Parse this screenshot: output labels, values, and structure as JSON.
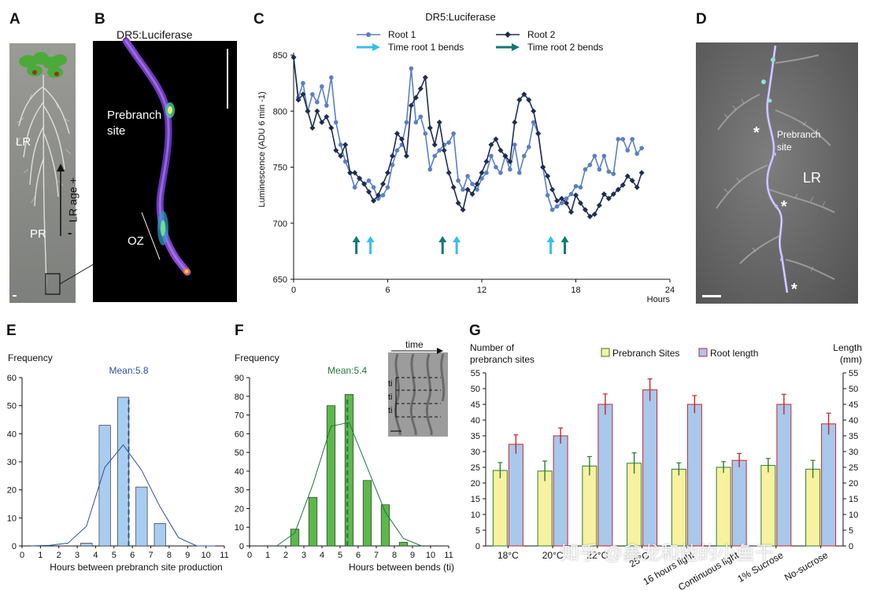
{
  "panels": {
    "A": {
      "letter": "A",
      "labels": {
        "lr": "LR",
        "pr": "PR",
        "age": "LR age",
        "plus": "+",
        "minus": "-",
        "scale": "-"
      }
    },
    "B": {
      "letter": "B",
      "title": "DR5:Luciferase",
      "labels": {
        "prebranch": "Prebranch",
        "site": "site",
        "oz": "OZ"
      }
    },
    "C": {
      "letter": "C"
    },
    "D": {
      "letter": "D",
      "labels": {
        "prebranch": "Prebranch",
        "site": "site",
        "lr": "LR",
        "star": "*"
      }
    },
    "E": {
      "letter": "E"
    },
    "F": {
      "letter": "F",
      "inset": {
        "time": "time",
        "ti": "ti"
      }
    },
    "G": {
      "letter": "G"
    }
  },
  "watermark": "知乎 @鑫龙和他的小鱼干",
  "chart_data": [
    {
      "id": "C",
      "type": "line",
      "title": "DR5:Luciferase",
      "xlabel": "Hours",
      "ylabel": "Luminescence (ADU 6 min -1)",
      "xlim": [
        0,
        24
      ],
      "ylim": [
        650,
        850
      ],
      "xticks": [
        0,
        6,
        12,
        18,
        24
      ],
      "yticks": [
        650,
        700,
        750,
        800,
        850
      ],
      "legend": [
        "Root 1",
        "Root 2",
        "Time root 1 bends",
        "Time root 2 bends"
      ],
      "series": [
        {
          "name": "Root 1",
          "color": "#5b7fc4",
          "marker": "circle",
          "x": [
            0.0,
            0.3,
            0.6,
            0.9,
            1.2,
            1.5,
            1.8,
            2.1,
            2.4,
            2.7,
            3.0,
            3.3,
            3.6,
            3.9,
            4.2,
            4.5,
            4.8,
            5.1,
            5.4,
            5.7,
            6.0,
            6.3,
            6.6,
            6.9,
            7.2,
            7.5,
            7.8,
            8.1,
            8.4,
            8.7,
            9.0,
            9.3,
            9.6,
            9.9,
            10.2,
            10.5,
            10.8,
            11.1,
            11.4,
            11.7,
            12.0,
            12.3,
            12.6,
            12.9,
            13.2,
            13.5,
            13.8,
            14.1,
            14.4,
            14.7,
            15.0,
            15.3,
            15.6,
            15.9,
            16.2,
            16.5,
            16.8,
            17.1,
            17.4,
            17.7,
            18.0,
            18.3,
            18.6,
            18.9,
            19.2,
            19.5,
            19.8,
            20.1,
            20.4,
            20.7,
            21.0,
            21.3,
            21.6,
            21.9,
            22.2
          ],
          "y": [
            848,
            812,
            825,
            800,
            815,
            808,
            822,
            805,
            830,
            790,
            770,
            755,
            745,
            732,
            740,
            735,
            738,
            732,
            722,
            725,
            732,
            752,
            765,
            770,
            790,
            838,
            790,
            795,
            780,
            748,
            760,
            765,
            770,
            772,
            780,
            738,
            730,
            742,
            735,
            730,
            740,
            745,
            760,
            750,
            745,
            760,
            748,
            770,
            745,
            760,
            768,
            790,
            780,
            750,
            725,
            712,
            715,
            718,
            722,
            726,
            733,
            732,
            748,
            752,
            760,
            748,
            760,
            746,
            744,
            775,
            775,
            765,
            775,
            762,
            767
          ]
        },
        {
          "name": "Root 2",
          "color": "#1d2e52",
          "marker": "diamond",
          "x": [
            0.0,
            0.3,
            0.6,
            0.9,
            1.2,
            1.5,
            1.8,
            2.1,
            2.4,
            2.7,
            3.0,
            3.3,
            3.6,
            3.9,
            4.2,
            4.5,
            4.8,
            5.1,
            5.4,
            5.7,
            6.0,
            6.3,
            6.6,
            6.9,
            7.2,
            7.5,
            7.8,
            8.1,
            8.4,
            8.7,
            9.0,
            9.3,
            9.6,
            9.9,
            10.2,
            10.5,
            10.8,
            11.1,
            11.4,
            11.7,
            12.0,
            12.3,
            12.6,
            12.9,
            13.2,
            13.5,
            13.8,
            14.1,
            14.4,
            14.7,
            15.0,
            15.3,
            15.6,
            15.9,
            16.2,
            16.5,
            16.8,
            17.1,
            17.4,
            17.7,
            18.0,
            18.3,
            18.6,
            18.9,
            19.2,
            19.5,
            19.8,
            20.1,
            20.4,
            20.7,
            21.0,
            21.3,
            21.6,
            21.9,
            22.2
          ],
          "y": [
            848,
            810,
            815,
            800,
            785,
            800,
            790,
            795,
            785,
            765,
            760,
            770,
            745,
            745,
            740,
            735,
            728,
            720,
            725,
            735,
            745,
            760,
            780,
            775,
            760,
            805,
            812,
            820,
            830,
            785,
            770,
            790,
            765,
            745,
            732,
            718,
            712,
            730,
            726,
            735,
            745,
            755,
            770,
            775,
            765,
            760,
            755,
            790,
            810,
            815,
            810,
            800,
            780,
            750,
            742,
            730,
            720,
            722,
            718,
            710,
            725,
            718,
            712,
            706,
            708,
            716,
            726,
            722,
            726,
            730,
            734,
            742,
            738,
            732,
            745
          ]
        }
      ],
      "arrows": [
        {
          "series": "Time root 2 bends",
          "color": "#127a72",
          "x": [
            4.0,
            9.5,
            17.3
          ]
        },
        {
          "series": "Time root 1 bends",
          "color": "#35c0e6",
          "x": [
            4.9,
            10.4,
            16.4
          ]
        }
      ]
    },
    {
      "id": "E",
      "type": "bar",
      "xlabel": "Hours between prebranch site production",
      "ylabel": "Frequency",
      "xlim": [
        0,
        11
      ],
      "ylim": [
        0,
        60
      ],
      "xticks": [
        0,
        1,
        2,
        3,
        4,
        5,
        6,
        7,
        8,
        9,
        10,
        11
      ],
      "yticks": [
        0,
        10,
        20,
        30,
        40,
        50,
        60
      ],
      "bar_color": "#a8cdf0",
      "bars": [
        {
          "x": 3.5,
          "value": 1
        },
        {
          "x": 4.5,
          "value": 43
        },
        {
          "x": 5.5,
          "value": 53
        },
        {
          "x": 6.5,
          "value": 21
        },
        {
          "x": 7.5,
          "value": 8
        }
      ],
      "fit_line": {
        "x": [
          0.5,
          1.5,
          2.5,
          3.5,
          4.5,
          5.5,
          6.5,
          7.5,
          8.5,
          9.5,
          10.5
        ],
        "y": [
          0,
          0.2,
          1,
          7,
          28,
          36,
          27,
          14,
          3,
          0,
          0
        ]
      },
      "mean": {
        "value": 5.8,
        "label": "Mean:5.8",
        "color": "#2a4f9c"
      }
    },
    {
      "id": "F",
      "type": "bar",
      "xlabel": "Hours between bends (ti)",
      "ylabel": "Frequency",
      "xlim": [
        0,
        11
      ],
      "ylim": [
        0,
        90
      ],
      "xticks": [
        0,
        1,
        2,
        3,
        4,
        5,
        6,
        7,
        8,
        9,
        10,
        11
      ],
      "yticks": [
        0,
        10,
        20,
        30,
        40,
        50,
        60,
        70,
        80,
        90
      ],
      "bar_color": "#5cb84a",
      "bars": [
        {
          "x": 2.5,
          "value": 9
        },
        {
          "x": 3.5,
          "value": 26
        },
        {
          "x": 4.5,
          "value": 75
        },
        {
          "x": 5.5,
          "value": 81
        },
        {
          "x": 6.5,
          "value": 35
        },
        {
          "x": 7.5,
          "value": 22
        },
        {
          "x": 8.5,
          "value": 2
        }
      ],
      "fit_line": {
        "x": [
          1.5,
          2.5,
          3.5,
          4.5,
          5.5,
          6.5,
          7.5,
          8.5,
          9.5
        ],
        "y": [
          0,
          7,
          33,
          64,
          66,
          42,
          18,
          4,
          0
        ]
      },
      "mean": {
        "value": 5.4,
        "label": "Mean:5.4",
        "color": "#1b7a3a"
      }
    },
    {
      "id": "G",
      "type": "bar",
      "ylabel_left": "Number of prebranch sites",
      "ylabel_right": "Length (mm)",
      "ylim": [
        0,
        55
      ],
      "yticks": [
        0,
        5,
        10,
        15,
        20,
        25,
        30,
        35,
        40,
        45,
        50,
        55
      ],
      "legend": [
        "Prebranch Sites",
        "Root length"
      ],
      "categories": [
        "18°C",
        "20°C",
        "22°C",
        "25°C",
        "16 hours light",
        "Continuous light",
        "1% Sucrose",
        "No-sucrose"
      ],
      "series": [
        {
          "name": "Prebranch Sites",
          "color": "#f7f1a0",
          "err_color": "#2e7d32",
          "values": [
            24,
            23.8,
            25.4,
            26.3,
            24.4,
            25,
            25.6,
            24.4
          ],
          "errors": [
            2.5,
            3.2,
            3.0,
            3.3,
            2.0,
            1.8,
            2.2,
            2.8
          ]
        },
        {
          "name": "Root length",
          "color": "#a8c8ec",
          "err_color": "#c62828",
          "values": [
            32.3,
            35,
            45,
            49.6,
            45,
            27.2,
            45,
            38.8
          ],
          "errors": [
            3.0,
            2.5,
            3.3,
            3.5,
            2.8,
            2.2,
            3.2,
            3.4
          ]
        }
      ]
    }
  ]
}
